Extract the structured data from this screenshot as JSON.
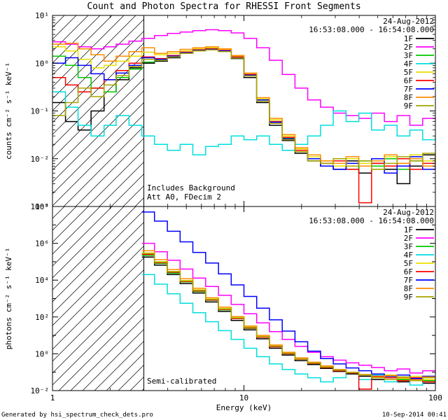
{
  "title": "Count and Photon Spectra for RHESSI Front Segments",
  "xlabel": "Energy (keV)",
  "footer": {
    "left": "Generated by hsi_spectrum_check_dets.pro",
    "right": "10-Sep-2014 00:41"
  },
  "legend": {
    "date": "24-Aug-2012",
    "time_range": "16:53:08.000 - 16:54:08.000"
  },
  "chart_data": {
    "type": "line",
    "xscale": "log",
    "xlim": [
      1,
      100
    ],
    "hatch_xmax": 3.0,
    "xticks": [
      {
        "value": 1,
        "label": "1"
      },
      {
        "value": 10,
        "label": "10"
      },
      {
        "value": 100,
        "label": "100"
      }
    ],
    "x": [
      1.0,
      1.17,
      1.36,
      1.59,
      1.86,
      2.15,
      2.51,
      2.93,
      3.41,
      3.98,
      4.64,
      5.41,
      6.31,
      7.36,
      8.58,
      10.0,
      11.66,
      13.59,
      15.85,
      18.48,
      21.54,
      25.12,
      29.29,
      34.15,
      39.81,
      46.42,
      54.12,
      63.1,
      73.56,
      85.77,
      100.0
    ],
    "panels": [
      {
        "name": "counts",
        "ylabel": "counts cm⁻² s⁻¹ keV⁻¹",
        "yscale": "log",
        "ylim": [
          0.001,
          10
        ],
        "yminor": true,
        "yticks": [
          {
            "exp": -3,
            "label": "10⁻³"
          },
          {
            "exp": -2,
            "label": "10⁻²"
          },
          {
            "exp": -1,
            "label": "10⁻¹"
          },
          {
            "exp": 0,
            "label": "10⁰"
          },
          {
            "exp": 1,
            "label": "10¹"
          }
        ],
        "annotations": [
          "Includes Background",
          "Att A0, FDecim 2"
        ],
        "series": [
          {
            "name": "1F",
            "color": "#000000",
            "values": [
              0.15,
              0.06,
              0.04,
              0.1,
              0.25,
              0.45,
              0.8,
              1.0,
              1.1,
              1.3,
              1.6,
              1.8,
              1.9,
              1.75,
              1.25,
              0.5,
              0.15,
              0.05,
              0.024,
              0.013,
              0.009,
              0.007,
              0.006,
              0.009,
              0.005,
              0.008,
              0.006,
              0.003,
              0.007,
              0.012,
              0.008
            ]
          },
          {
            "name": "2F",
            "color": "#ff00ff",
            "values": [
              2.8,
              2.5,
              2.2,
              2.0,
              2.2,
              2.5,
              2.9,
              3.3,
              3.8,
              4.2,
              4.5,
              4.8,
              5.0,
              4.8,
              4.3,
              3.3,
              2.1,
              1.15,
              0.58,
              0.3,
              0.17,
              0.12,
              0.09,
              0.08,
              0.07,
              0.09,
              0.06,
              0.08,
              0.05,
              0.07,
              0.06
            ]
          },
          {
            "name": "3F",
            "color": "#00c800",
            "values": [
              1.4,
              0.9,
              0.5,
              0.3,
              0.25,
              0.5,
              0.75,
              1.05,
              1.15,
              1.4,
              1.65,
              1.85,
              1.95,
              1.8,
              1.3,
              0.55,
              0.17,
              0.06,
              0.027,
              0.015,
              0.01,
              0.008,
              0.007,
              0.006,
              0.009,
              0.007,
              0.01,
              0.006,
              0.009,
              0.007,
              0.011
            ]
          },
          {
            "name": "4F",
            "color": "#00dede",
            "values": [
              0.25,
              0.12,
              0.05,
              0.03,
              0.05,
              0.08,
              0.05,
              0.03,
              0.02,
              0.015,
              0.02,
              0.012,
              0.018,
              0.02,
              0.03,
              0.025,
              0.03,
              0.02,
              0.015,
              0.02,
              0.03,
              0.05,
              0.1,
              0.06,
              0.09,
              0.04,
              0.05,
              0.03,
              0.04,
              0.025,
              0.03
            ]
          },
          {
            "name": "5F",
            "color": "#e8e000",
            "values": [
              2.2,
              1.8,
              1.2,
              0.8,
              0.9,
              1.1,
              1.4,
              1.7,
              1.5,
              1.6,
              1.8,
              2.0,
              2.1,
              1.95,
              1.4,
              0.6,
              0.18,
              0.065,
              0.03,
              0.016,
              0.011,
              0.009,
              0.007,
              0.01,
              0.008,
              0.006,
              0.011,
              0.008,
              0.012,
              0.009,
              0.007
            ]
          },
          {
            "name": "6F",
            "color": "#ff0000",
            "values": [
              0.5,
              0.35,
              0.25,
              0.3,
              0.45,
              0.7,
              1.0,
              1.35,
              1.25,
              1.45,
              1.7,
              1.9,
              2.0,
              1.85,
              1.35,
              0.58,
              0.17,
              0.06,
              0.028,
              0.015,
              0.01,
              0.008,
              0.009,
              0.006,
              0.0012,
              0.008,
              0.007,
              0.01,
              0.006,
              0.008,
              0.01
            ]
          },
          {
            "name": "7F",
            "color": "#0000ff",
            "values": [
              1.0,
              1.3,
              0.9,
              0.6,
              0.45,
              0.62,
              0.9,
              1.3,
              1.2,
              1.4,
              1.65,
              1.85,
              1.95,
              1.8,
              1.3,
              0.56,
              0.17,
              0.058,
              0.026,
              0.014,
              0.01,
              0.007,
              0.006,
              0.008,
              0.007,
              0.01,
              0.005,
              0.007,
              0.011,
              0.006,
              0.009
            ]
          },
          {
            "name": "8F",
            "color": "#ff8c00",
            "values": [
              2.5,
              2.6,
              2.0,
              1.5,
              1.1,
              1.4,
              1.75,
              2.1,
              1.6,
              1.75,
              1.95,
              2.1,
              2.2,
              2.0,
              1.45,
              0.62,
              0.19,
              0.07,
              0.032,
              0.017,
              0.012,
              0.009,
              0.008,
              0.011,
              0.007,
              0.009,
              0.012,
              0.008,
              0.01,
              0.007,
              0.012
            ]
          },
          {
            "name": "9F",
            "color": "#a6a600",
            "values": [
              0.08,
              0.15,
              0.3,
              0.2,
              0.35,
              0.55,
              0.85,
              1.2,
              1.15,
              1.35,
              1.6,
              1.8,
              1.9,
              1.75,
              1.28,
              0.54,
              0.16,
              0.055,
              0.025,
              0.014,
              0.009,
              0.008,
              0.01,
              0.007,
              0.009,
              0.006,
              0.008,
              0.011,
              0.009,
              0.013,
              0.01
            ]
          }
        ]
      },
      {
        "name": "photons",
        "ylabel": "photons cm⁻² s⁻¹ keV⁻¹",
        "yscale": "log",
        "ylim": [
          0.01,
          100000000.0
        ],
        "yminor": false,
        "yticks": [
          {
            "exp": -2,
            "label": "10⁻²"
          },
          {
            "exp": -1,
            "label": ""
          },
          {
            "exp": 0,
            "label": "10⁰"
          },
          {
            "exp": 1,
            "label": ""
          },
          {
            "exp": 2,
            "label": "10²"
          },
          {
            "exp": 3,
            "label": ""
          },
          {
            "exp": 4,
            "label": "10⁴"
          },
          {
            "exp": 5,
            "label": ""
          },
          {
            "exp": 6,
            "label": "10⁶"
          },
          {
            "exp": 7,
            "label": ""
          },
          {
            "exp": 8,
            "label": "10⁸"
          }
        ],
        "annotations": [
          "Semi-calibrated"
        ],
        "series": [
          {
            "name": "1F",
            "color": "#000000",
            "values": [
              null,
              null,
              null,
              null,
              null,
              null,
              null,
              180000.0,
              65000.0,
              20000.0,
              6500.0,
              2000.0,
              650,
              200,
              65,
              20,
              6.5,
              2.0,
              0.85,
              0.42,
              0.26,
              0.16,
              0.11,
              0.08,
              0.06,
              0.04,
              0.05,
              0.03,
              0.045,
              0.025,
              0.035
            ]
          },
          {
            "name": "2F",
            "color": "#ff00ff",
            "values": [
              null,
              null,
              null,
              null,
              null,
              null,
              null,
              1000000.0,
              350000.0,
              120000.0,
              40000.0,
              13000.0,
              4500,
              1500,
              480,
              150,
              48,
              16,
              6.0,
              2.5,
              1.2,
              0.7,
              0.45,
              0.32,
              0.24,
              0.18,
              0.12,
              0.15,
              0.09,
              0.12,
              0.08
            ]
          },
          {
            "name": "3F",
            "color": "#00c800",
            "values": [
              null,
              null,
              null,
              null,
              null,
              null,
              null,
              220000.0,
              80000.0,
              24000.0,
              8000.0,
              2400.0,
              800,
              240,
              80,
              24,
              8.0,
              2.4,
              1.0,
              0.5,
              0.3,
              0.19,
              0.13,
              0.09,
              0.07,
              0.05,
              0.06,
              0.04,
              0.05,
              0.035,
              0.045
            ]
          },
          {
            "name": "4F",
            "color": "#00dede",
            "values": [
              null,
              null,
              null,
              null,
              null,
              null,
              null,
              20000.0,
              6000.0,
              1800.0,
              550,
              170,
              55,
              18,
              6.0,
              2.0,
              0.7,
              0.28,
              0.14,
              0.08,
              0.05,
              0.03,
              0.05,
              0.09,
              0.04,
              0.07,
              0.03,
              0.05,
              0.02,
              0.04,
              0.025
            ]
          },
          {
            "name": "5F",
            "color": "#e8e000",
            "values": [
              null,
              null,
              null,
              null,
              null,
              null,
              null,
              300000.0,
              100000.0,
              30000.0,
              9500.0,
              3000.0,
              950,
              290,
              92,
              28,
              8.8,
              2.7,
              1.1,
              0.55,
              0.32,
              0.2,
              0.13,
              0.1,
              0.07,
              0.055,
              0.07,
              0.045,
              0.06,
              0.04,
              0.05
            ]
          },
          {
            "name": "6F",
            "color": "#ff0000",
            "values": [
              null,
              null,
              null,
              null,
              null,
              null,
              null,
              250000.0,
              88000.0,
              27000.0,
              8500.0,
              2600.0,
              830,
              255,
              82,
              25,
              7.8,
              2.4,
              1.0,
              0.5,
              0.3,
              0.18,
              0.12,
              0.09,
              0.012,
              0.06,
              0.05,
              0.035,
              0.05,
              0.03,
              0.04
            ]
          },
          {
            "name": "7F",
            "color": "#0000ff",
            "values": [
              null,
              null,
              null,
              null,
              null,
              null,
              null,
              50000000.0,
              16000000.0,
              4500000.0,
              1200000.0,
              320000.0,
              85000.0,
              22000.0,
              5500,
              1300,
              300,
              70,
              17,
              4.5,
              1.4,
              0.55,
              0.28,
              0.17,
              0.12,
              0.08,
              0.06,
              0.07,
              0.045,
              0.06,
              0.05
            ]
          },
          {
            "name": "8F",
            "color": "#ff8c00",
            "values": [
              null,
              null,
              null,
              null,
              null,
              null,
              null,
              400000.0,
              130000.0,
              38000.0,
              12000.0,
              3600.0,
              1100,
              340,
              105,
              32,
              10,
              3.0,
              1.2,
              0.6,
              0.35,
              0.22,
              0.14,
              0.1,
              0.075,
              0.055,
              0.065,
              0.05,
              0.04,
              0.055,
              0.045
            ]
          },
          {
            "name": "9F",
            "color": "#a6a600",
            "values": [
              null,
              null,
              null,
              null,
              null,
              null,
              null,
              280000.0,
              95000.0,
              29000.0,
              9000.0,
              2800.0,
              900,
              270,
              88,
              27,
              8.5,
              2.6,
              1.05,
              0.52,
              0.31,
              0.19,
              0.13,
              0.095,
              0.07,
              0.05,
              0.04,
              0.055,
              0.035,
              0.05,
              0.04
            ]
          }
        ]
      }
    ]
  }
}
